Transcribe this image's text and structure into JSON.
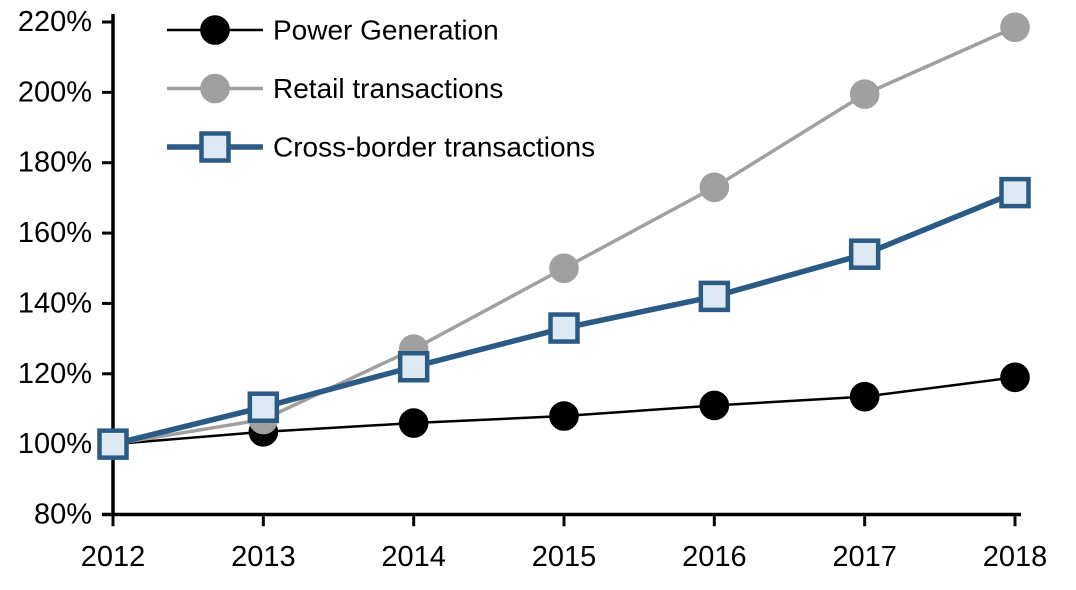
{
  "chart_data": {
    "type": "line",
    "title": "",
    "xlabel": "",
    "ylabel": "",
    "x": [
      "2012",
      "2013",
      "2014",
      "2015",
      "2016",
      "2017",
      "2018"
    ],
    "ylim": [
      80,
      220
    ],
    "ytick_step": 20,
    "ytick_labels": [
      "80%",
      "100%",
      "120%",
      "140%",
      "160%",
      "180%",
      "200%",
      "220%"
    ],
    "xtick_labels": [
      "2012",
      "2013",
      "2014",
      "2015",
      "2016",
      "2017",
      "2018"
    ],
    "grid": false,
    "legend_position": "top-left-inside",
    "axis_color": "#000000",
    "background_color": "#ffffff",
    "series": [
      {
        "name": "Power Generation",
        "color": "#000000",
        "marker": "circle",
        "marker_fill": "#000000",
        "marker_stroke": "#000000",
        "line_width": 2.5,
        "values": [
          100,
          103.5,
          106,
          108,
          111,
          113.5,
          119
        ]
      },
      {
        "name": "Retail transactions",
        "color": "#a0a0a0",
        "marker": "circle",
        "marker_fill": "#a0a0a0",
        "marker_stroke": "#a0a0a0",
        "line_width": 3.5,
        "values": [
          100,
          107,
          127,
          150,
          173,
          199.5,
          218.5
        ]
      },
      {
        "name": "Cross-border transactions",
        "color": "#2b5a84",
        "marker": "square",
        "marker_fill": "#dfe9f3",
        "marker_stroke": "#2b5a84",
        "line_width": 5.5,
        "values": [
          100,
          110.5,
          122,
          133,
          142,
          154,
          171.5
        ]
      }
    ]
  }
}
